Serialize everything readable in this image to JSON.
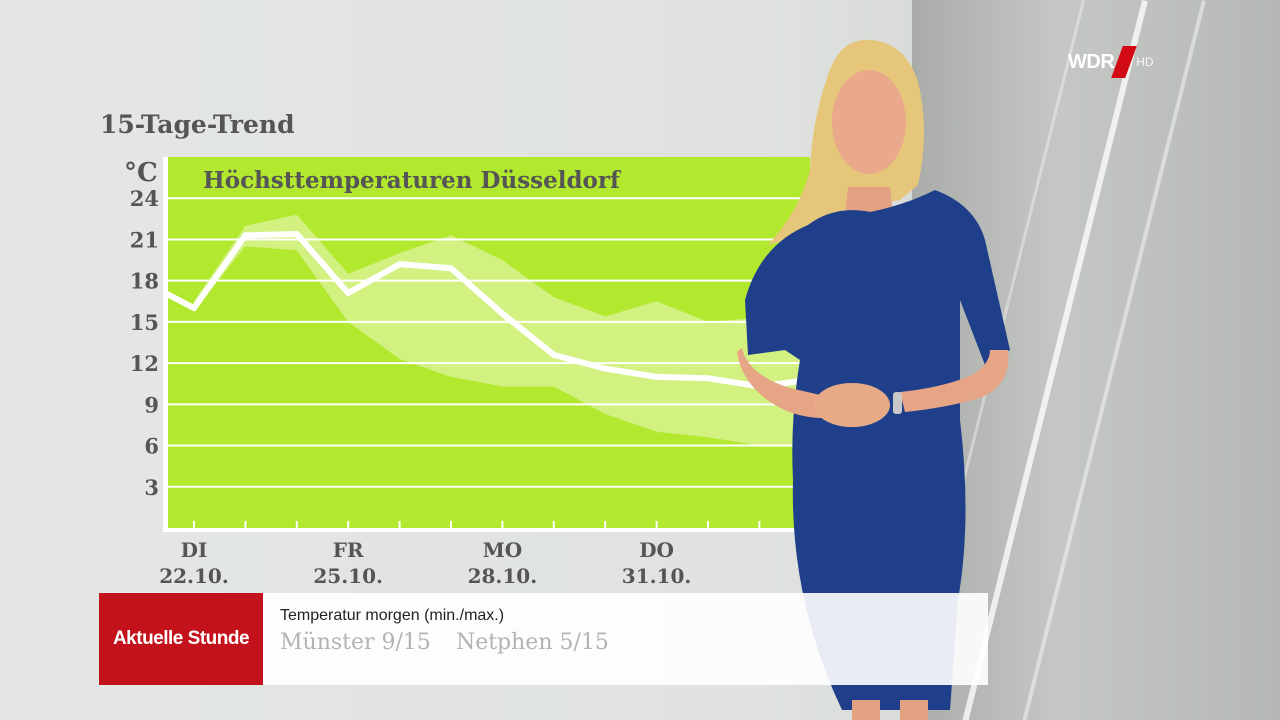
{
  "panel": {
    "title": "15-Tage-Trend"
  },
  "chart_data": {
    "type": "line",
    "title": "Höchsttemperaturen Düsseldorf",
    "ylabel": "°C",
    "ylim": [
      0,
      27
    ],
    "yticks": [
      3,
      6,
      9,
      12,
      15,
      18,
      21,
      24
    ],
    "grid": true,
    "x_labels": [
      {
        "day": "DI",
        "date": "22.10.",
        "index": 0
      },
      {
        "day": "FR",
        "date": "25.10.",
        "index": 3
      },
      {
        "day": "MO",
        "date": "28.10.",
        "index": 6
      },
      {
        "day": "DO",
        "date": "31.10.",
        "index": 9
      },
      {
        "day": "",
        "date": "0",
        "index": 12
      }
    ],
    "x_start_index": -0.5,
    "series": [
      {
        "name": "",
        "values": [
          16,
          21.3,
          21.4,
          17.1,
          19.2,
          18.9,
          15.6,
          12.6,
          11.6,
          11.0,
          10.9,
          10.3,
          10.8
        ]
      }
    ],
    "series_start_value": 17,
    "band_upper": [
      16.5,
      22.0,
      22.8,
      18.5,
      20.0,
      21.3,
      19.5,
      16.8,
      15.4,
      16.5,
      15.0,
      15.3,
      15.6
    ],
    "band_lower": [
      15.8,
      20.5,
      20.2,
      15.0,
      12.3,
      11.0,
      10.3,
      10.3,
      8.3,
      7.0,
      6.6,
      6.0,
      6.0
    ]
  },
  "ticker": {
    "brand": "Aktuelle Stunde",
    "heading": "Temperatur morgen (min./max.)",
    "items": [
      "Münster 9/15",
      "Netphen 5/15"
    ]
  },
  "logo": {
    "text": "WDR",
    "suffix": "HD",
    "accent": "#d20a14"
  },
  "colors": {
    "chart_bg": "#b2e82e",
    "band": "#d7f28f",
    "line": "#ffffff",
    "text": "#555555",
    "brand_red": "#c3121b"
  }
}
